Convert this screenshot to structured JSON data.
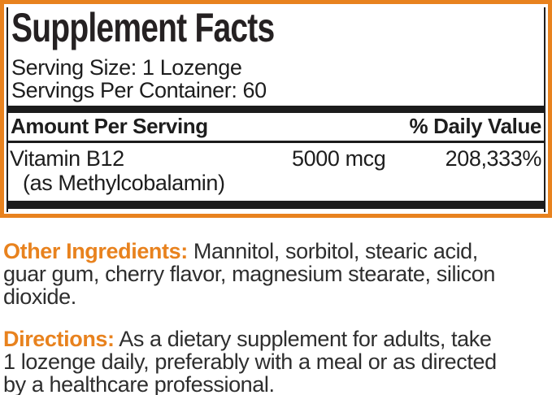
{
  "colors": {
    "accent_orange": "#E8821E",
    "rule_black": "#1C1C1C",
    "panel_text": "#1D1D1D",
    "body_text": "#2E2E2E"
  },
  "facts": {
    "title": "Supplement Facts",
    "serving_size": "Serving Size: 1 Lozenge",
    "servings_per_container": "Servings Per Container: 60",
    "header": {
      "amount": "Amount Per Serving",
      "daily_value": "% Daily Value"
    },
    "rows": [
      {
        "name": "Vitamin B12",
        "amount": "5000 mcg",
        "daily_value": "208,333%",
        "detail": "(as Methylcobalamin)"
      }
    ]
  },
  "other_ingredients": {
    "label": "Other Ingredients:",
    "line1": " Mannitol, sorbitol, stearic acid,",
    "line2": "guar gum, cherry flavor, magnesium stearate, silicon",
    "line3": "dioxide."
  },
  "directions": {
    "label": "Directions:",
    "line1": " As a dietary supplement for adults, take",
    "line2": "1 lozenge daily, preferably with a meal or as directed",
    "line3": "by a healthcare professional."
  }
}
